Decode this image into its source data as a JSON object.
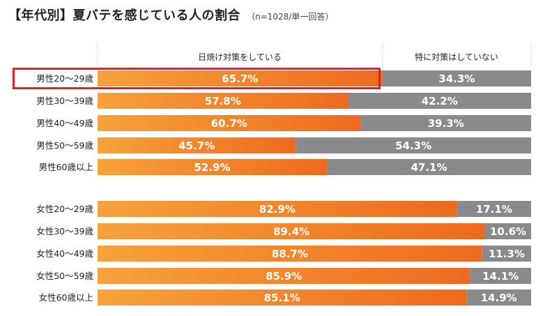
{
  "title": {
    "main": "【年代別】夏バテを感じている人の割合",
    "sub": "（n=1028/単一回答）"
  },
  "colors": {
    "orange_light": "#f7a23a",
    "orange_dark": "#ee6a1e",
    "gray": "#8a8a8c",
    "highlight": "#e0202a",
    "divider": "#bbbbbb"
  },
  "chart_data": {
    "type": "bar",
    "orientation": "horizontal-stacked-100",
    "title": "【年代別】夏バテを感じている人の割合",
    "subtitle": "（n=1028/単一回答）",
    "xlim": [
      0,
      100
    ],
    "unit": "%",
    "highlighted_category": "男性20～29歳",
    "categories": [
      "男性20～29歳",
      "男性30～39歳",
      "男性40～49歳",
      "男性50～59歳",
      "男性60歳以上",
      "女性20～29歳",
      "女性30～39歳",
      "女性40～49歳",
      "女性50～59歳",
      "女性60歳以上"
    ],
    "series": [
      {
        "name": "日焼け対策をしている",
        "values": [
          65.7,
          57.8,
          60.7,
          45.7,
          52.9,
          82.9,
          89.4,
          88.7,
          85.9,
          85.1
        ],
        "labels": [
          "65.7%",
          "57.8%",
          "60.7%",
          "45.7%",
          "52.9%",
          "82.9%",
          "89.4%",
          "88.7%",
          "85.9%",
          "85.1%"
        ]
      },
      {
        "name": "特に対策はしていない",
        "values": [
          34.3,
          42.2,
          39.3,
          54.3,
          47.1,
          17.1,
          10.6,
          11.3,
          14.1,
          14.9
        ],
        "labels": [
          "34.3%",
          "42.2%",
          "39.3%",
          "54.3%",
          "47.1%",
          "17.1%",
          "10.6%",
          "11.3%",
          "14.1%",
          "14.9%"
        ]
      }
    ]
  }
}
